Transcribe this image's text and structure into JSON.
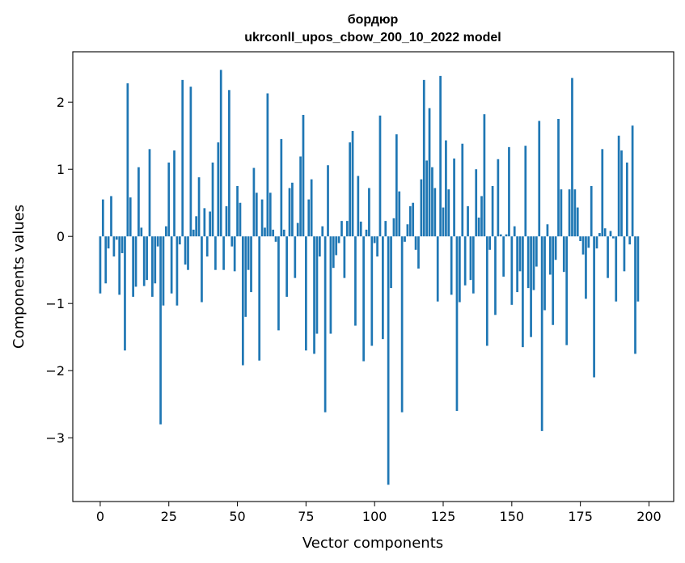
{
  "chart_data": {
    "type": "bar",
    "title_line1": "бордюр",
    "title_line2": "ukrconll_upos_cbow_200_10_2022 model",
    "xlabel": "Vector components",
    "ylabel": "Components values",
    "xlim": [
      -10,
      209
    ],
    "ylim": [
      -3.95,
      2.75
    ],
    "xticks": [
      0,
      25,
      50,
      75,
      100,
      125,
      150,
      175,
      200
    ],
    "yticks": [
      -3,
      -2,
      -1,
      0,
      1,
      2
    ],
    "grid": false,
    "bar_color": "#1f77b4",
    "values": [
      -0.85,
      0.55,
      -0.7,
      -0.18,
      0.6,
      -0.3,
      -0.05,
      -0.87,
      -0.25,
      -1.7,
      2.28,
      0.58,
      -0.9,
      -0.75,
      1.03,
      0.13,
      -0.74,
      -0.65,
      1.3,
      -0.9,
      -0.7,
      -0.15,
      -2.8,
      -1.03,
      0.15,
      1.1,
      -0.85,
      1.28,
      -1.03,
      -0.12,
      2.33,
      -0.42,
      -0.5,
      2.23,
      0.1,
      0.3,
      0.88,
      -0.98,
      0.42,
      -0.3,
      0.37,
      1.1,
      -0.5,
      1.4,
      2.48,
      -0.5,
      0.45,
      2.18,
      -0.15,
      -0.52,
      0.75,
      0.5,
      -1.92,
      -1.2,
      -0.5,
      -0.83,
      1.02,
      0.65,
      -1.85,
      0.55,
      0.13,
      2.13,
      0.65,
      0.1,
      -0.08,
      -1.4,
      1.45,
      0.1,
      -0.9,
      0.72,
      0.8,
      -0.62,
      0.2,
      1.19,
      1.81,
      -1.7,
      0.55,
      0.85,
      -1.75,
      -1.45,
      -0.3,
      0.15,
      -2.62,
      1.06,
      -1.45,
      -0.47,
      -0.28,
      -0.1,
      0.23,
      -0.62,
      0.23,
      1.4,
      1.57,
      -1.33,
      0.9,
      0.22,
      -1.86,
      0.1,
      0.72,
      -1.63,
      -0.1,
      -0.3,
      1.8,
      -1.53,
      0.23,
      -3.7,
      -0.77,
      0.27,
      1.52,
      0.67,
      -2.62,
      -0.08,
      0.18,
      0.45,
      0.5,
      -0.2,
      -0.48,
      0.85,
      2.33,
      1.13,
      1.91,
      1.03,
      0.72,
      -0.97,
      2.39,
      0.43,
      1.43,
      0.7,
      -0.87,
      1.16,
      -2.6,
      -0.98,
      1.38,
      -0.73,
      0.45,
      -0.65,
      -0.85,
      1.0,
      0.28,
      0.6,
      1.82,
      -1.63,
      -0.2,
      0.75,
      -1.17,
      1.15,
      0.03,
      -0.6,
      0.03,
      1.33,
      -1.02,
      0.15,
      -0.83,
      -0.52,
      -1.65,
      1.35,
      -0.77,
      -1.5,
      -0.8,
      -0.45,
      1.72,
      -2.9,
      -1.1,
      0.18,
      -0.57,
      -1.32,
      -0.35,
      1.75,
      0.7,
      -0.53,
      -1.62,
      0.7,
      2.36,
      0.7,
      0.43,
      -0.07,
      -0.27,
      -0.93,
      -0.17,
      0.75,
      -2.1,
      -0.18,
      0.05,
      1.3,
      0.12,
      -0.62,
      0.08,
      -0.03,
      -0.97,
      1.5,
      1.28,
      -0.52,
      1.1,
      -0.12,
      1.65,
      -1.75,
      -0.97
    ]
  }
}
